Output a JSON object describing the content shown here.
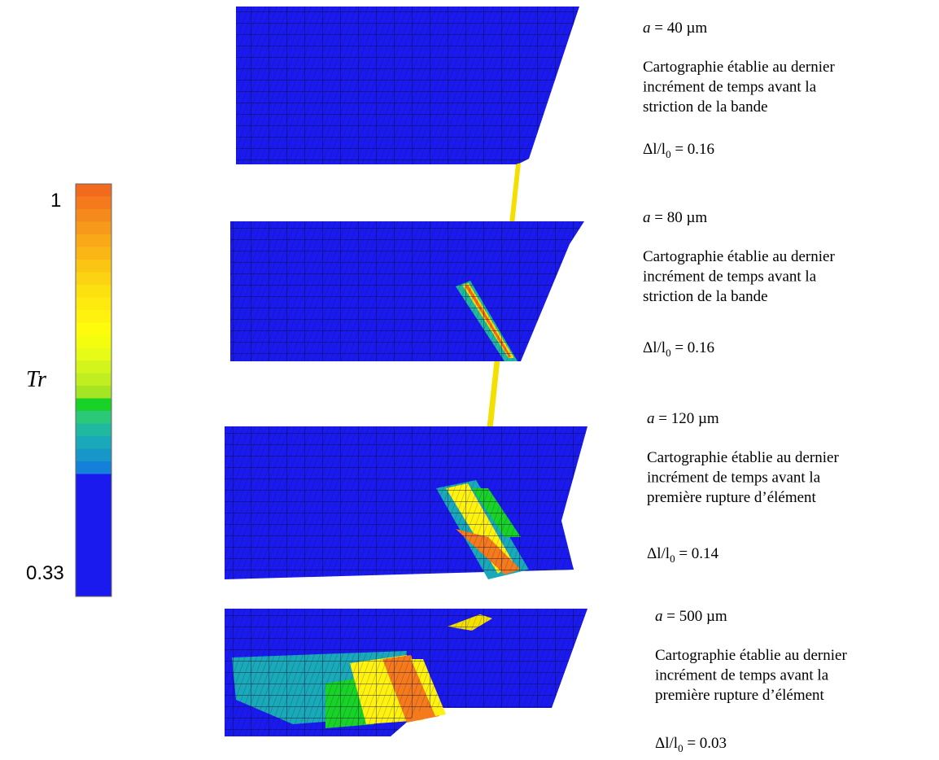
{
  "colorbar": {
    "max_label": "1",
    "min_label": "0.33",
    "symbol": "Tr",
    "colors": [
      "#f26a1d",
      "#f47a1d",
      "#f58a1c",
      "#f7991a",
      "#f9a818",
      "#fab616",
      "#fbc514",
      "#fcd312",
      "#fde010",
      "#feea0f",
      "#fff20e",
      "#fffb0c",
      "#f4fd0e",
      "#e6fb16",
      "#d4f51c",
      "#c0ee20",
      "#a6e524",
      "#18d227",
      "#2cc87a",
      "#1fb9a0",
      "#1aa9b8",
      "#1796c8",
      "#1480da",
      "#1a1aee"
    ]
  },
  "panels": [
    {
      "a_symbol": "a",
      "a_value": " = 40 µm",
      "description": [
        "Cartographie établie au dernier",
        "incrément de temps avant la",
        "striction de la bande"
      ],
      "strain_symbol": "Δl/l",
      "strain_sub": "0",
      "strain_value": " = 0.16"
    },
    {
      "a_symbol": "a",
      "a_value": " = 80 µm",
      "description": [
        "Cartographie établie au dernier",
        "incrément de temps avant la",
        "striction de la bande"
      ],
      "strain_symbol": "Δl/l",
      "strain_sub": "0",
      "strain_value": " = 0.16"
    },
    {
      "a_symbol": "a",
      "a_value": " = 120 µm",
      "description": [
        "Cartographie établie au dernier",
        "incrément de temps avant la",
        "première rupture d’élément"
      ],
      "strain_symbol": "Δl/l",
      "strain_sub": "0",
      "strain_value": " = 0.14"
    },
    {
      "a_symbol": "a",
      "a_value": " = 500 µm",
      "description": [
        "Cartographie établie au dernier",
        "incrément de temps avant la",
        "première rupture d’élément"
      ],
      "strain_symbol": "Δl/l",
      "strain_sub": "0",
      "strain_value": " = 0.03"
    }
  ]
}
